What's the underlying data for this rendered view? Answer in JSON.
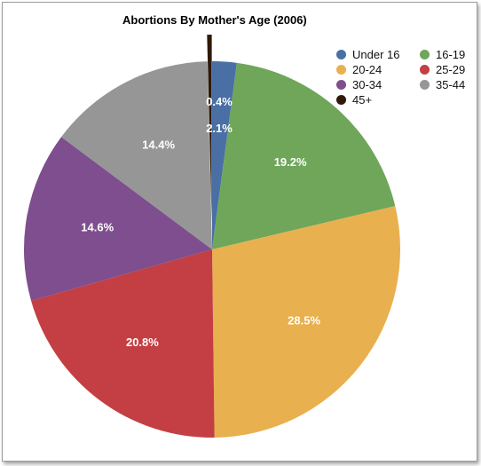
{
  "chart_data": {
    "type": "pie",
    "title": "Abortions By Mother's Age (2006)",
    "slices": [
      {
        "label": "Under 16",
        "value": 2.1,
        "display": "2.1%",
        "color": "#4a6fa5",
        "exploded": false
      },
      {
        "label": "16-19",
        "value": 19.2,
        "display": "19.2%",
        "color": "#6fa65a",
        "exploded": false
      },
      {
        "label": "20-24",
        "value": 28.5,
        "display": "28.5%",
        "color": "#e8b04e",
        "exploded": false
      },
      {
        "label": "25-29",
        "value": 20.8,
        "display": "20.8%",
        "color": "#c33f43",
        "exploded": false
      },
      {
        "label": "30-34",
        "value": 14.6,
        "display": "14.6%",
        "color": "#7e4e8f",
        "exploded": false
      },
      {
        "label": "35-44",
        "value": 14.4,
        "display": "14.4%",
        "color": "#969696",
        "exploded": false
      },
      {
        "label": "45+",
        "value": 0.4,
        "display": "0.4%",
        "color": "#2e1a08",
        "exploded": true
      }
    ],
    "legend_position": "top-right",
    "start_angle": "12 o'clock",
    "direction": "clockwise"
  }
}
